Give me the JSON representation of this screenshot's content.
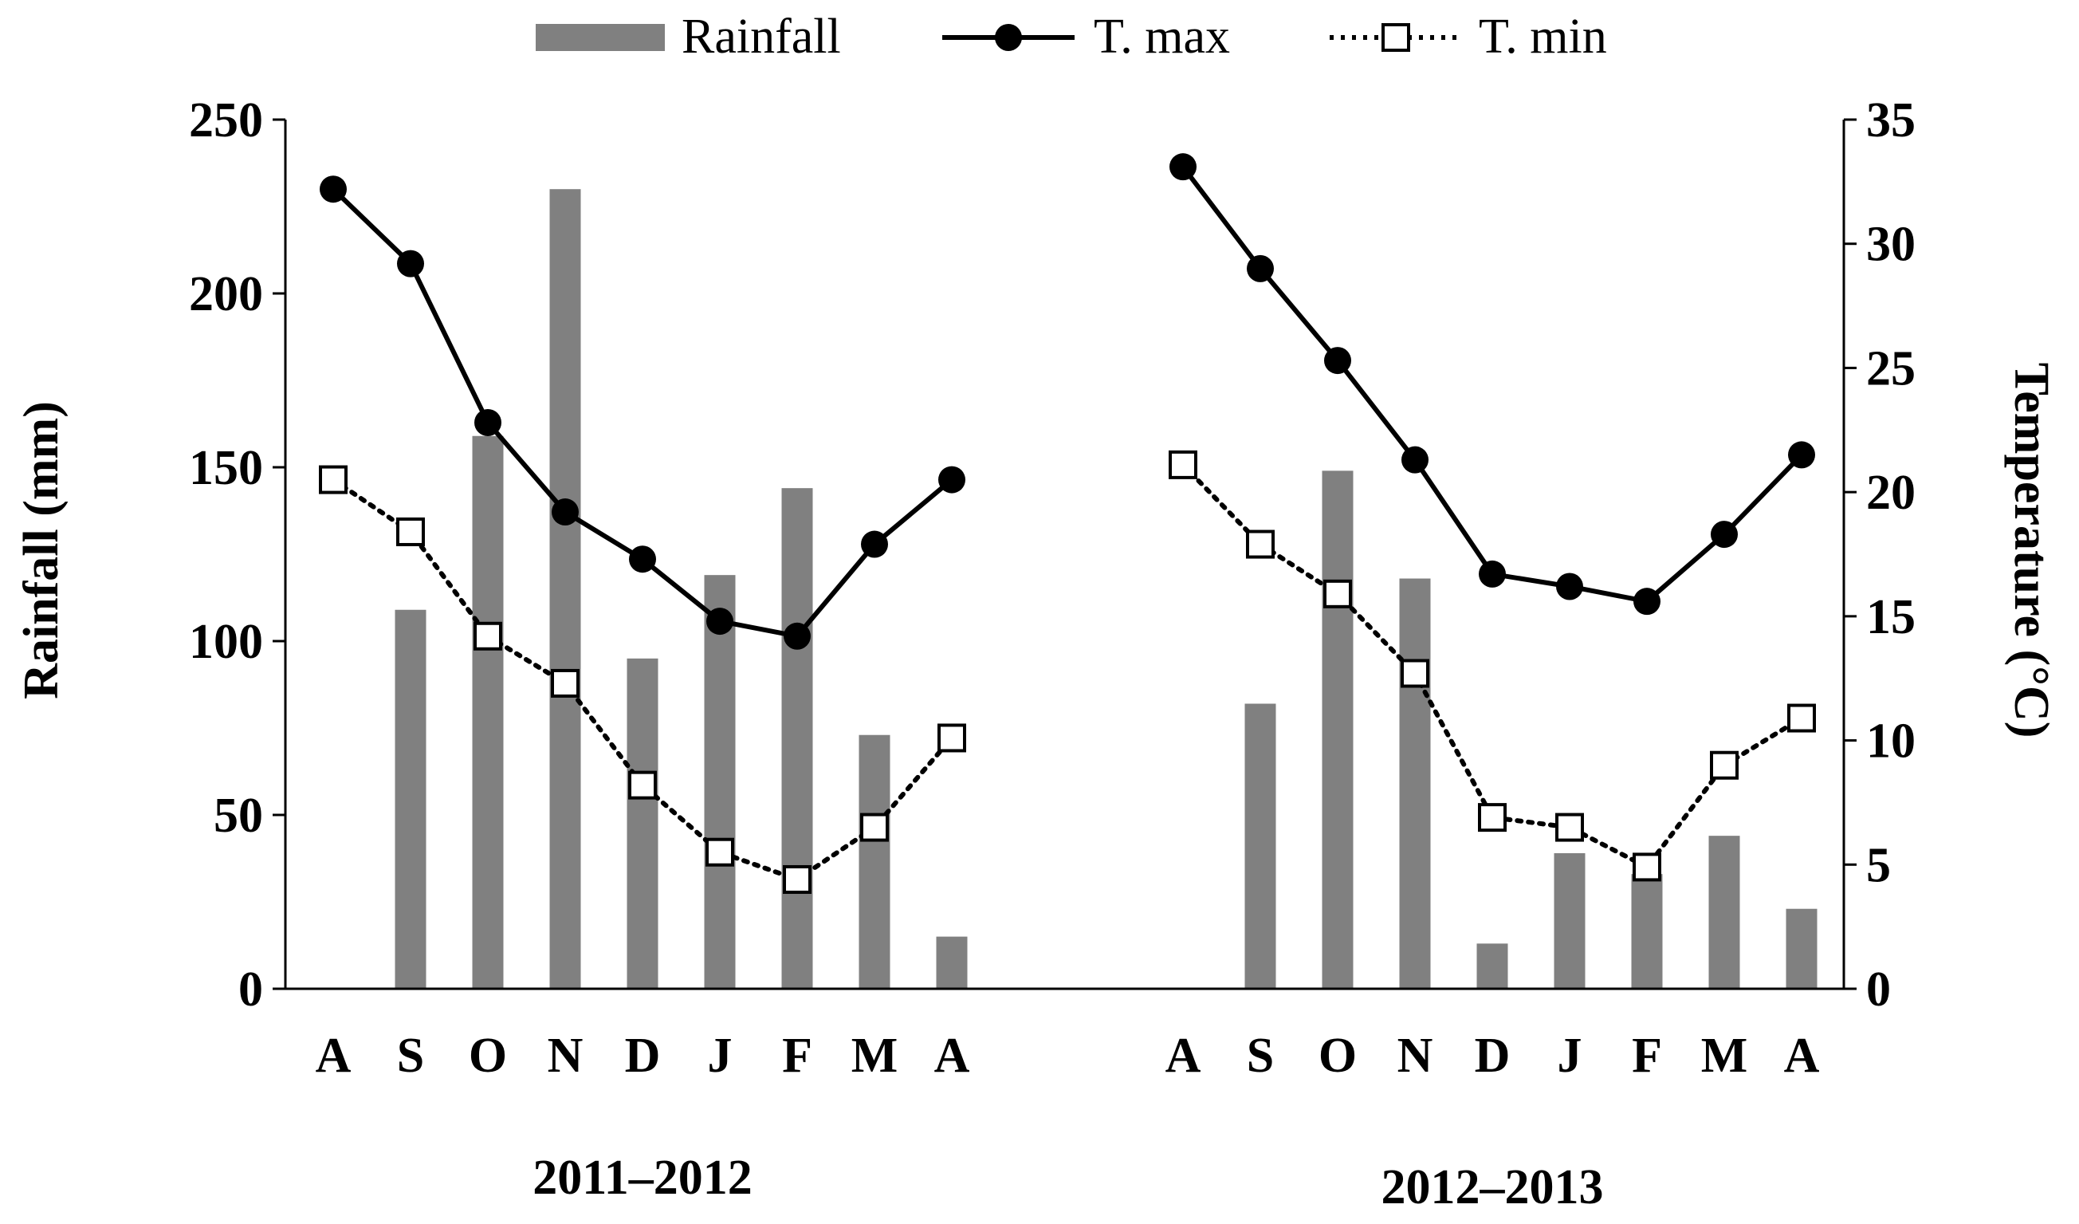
{
  "chart_data": {
    "type": "bar",
    "title": "",
    "legend": {
      "placement": "top-center",
      "entries": [
        {
          "key": "rainfall",
          "label": "Rainfall"
        },
        {
          "key": "tmax",
          "label": "T. max"
        },
        {
          "key": "tmin",
          "label": "T. min"
        }
      ]
    },
    "left_axis": {
      "label": "Rainfall (mm)",
      "range": [
        0,
        250
      ],
      "ticks": [
        "0",
        "50",
        "100",
        "150",
        "200",
        "250"
      ]
    },
    "right_axis": {
      "label": "Temperature (°C)",
      "range": [
        0,
        35
      ],
      "ticks": [
        "0",
        "5",
        "10",
        "15",
        "20",
        "25",
        "30",
        "35"
      ]
    },
    "grid": false,
    "panels": [
      {
        "season": "2011–2012",
        "months": [
          "A",
          "S",
          "O",
          "N",
          "D",
          "J",
          "F",
          "M",
          "A"
        ],
        "rainfall": [
          0,
          109,
          159,
          230,
          95,
          119,
          144,
          73,
          15
        ],
        "tmax": [
          32.2,
          29.2,
          22.8,
          19.2,
          17.3,
          14.8,
          14.2,
          17.9,
          20.5
        ],
        "tmin": [
          20.5,
          18.4,
          14.2,
          12.3,
          8.2,
          5.5,
          4.4,
          6.5,
          10.1
        ]
      },
      {
        "season": "2012–2013",
        "months": [
          "A",
          "S",
          "O",
          "N",
          "D",
          "J",
          "F",
          "M",
          "A"
        ],
        "rainfall": [
          0,
          82,
          149,
          118,
          13,
          39,
          33,
          44,
          23
        ],
        "tmax": [
          33.1,
          29.0,
          25.3,
          21.3,
          16.7,
          16.2,
          15.6,
          18.3,
          21.5
        ],
        "tmin": [
          21.1,
          17.9,
          15.9,
          12.7,
          6.9,
          6.5,
          4.9,
          9.0,
          10.9
        ]
      }
    ],
    "colors": {
      "bar": "#808080",
      "line": "#000000",
      "marker_open_fill": "#ffffff"
    }
  }
}
